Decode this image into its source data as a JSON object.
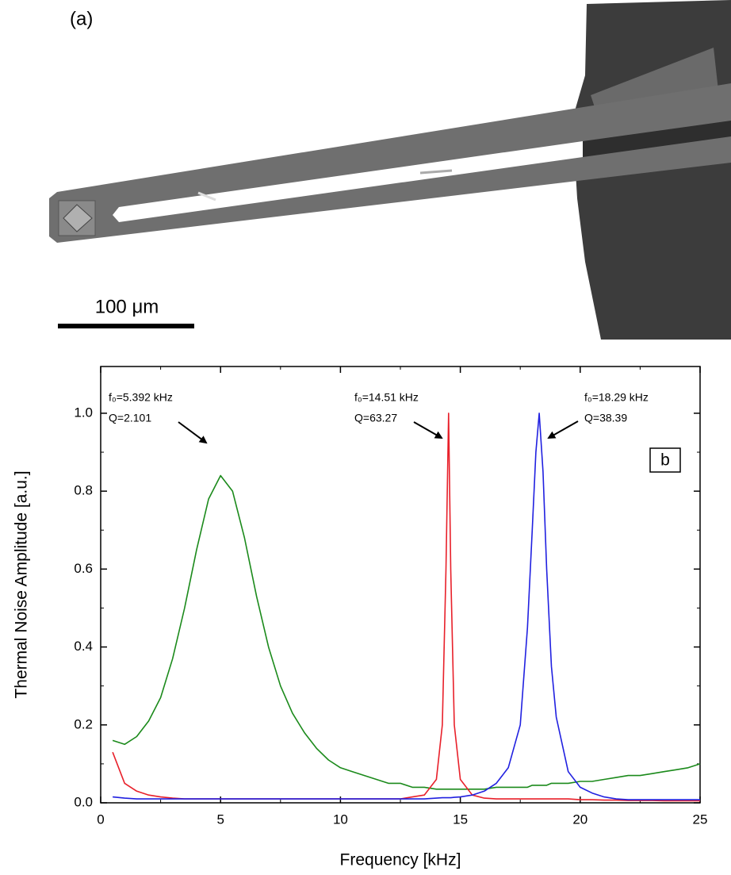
{
  "panel_a": {
    "label": "(a)",
    "scale_bar": "100 μm"
  },
  "chart_data": {
    "type": "line",
    "xlabel": "Frequency [kHz]",
    "ylabel": "Thermal Noise Amplitude [a.u.]",
    "panel_label": "b",
    "xlim": [
      0,
      25
    ],
    "ylim": [
      0,
      1.12
    ],
    "xticks": [
      0,
      5,
      10,
      15,
      20,
      25
    ],
    "yticks": [
      {
        "value": 0,
        "label": "0.0"
      },
      0.2,
      0.4,
      0.6,
      0.8,
      {
        "value": 1,
        "label": "1.0"
      }
    ],
    "annotations": [
      {
        "text": "f₀=5.392 kHz",
        "q": "Q=2.101"
      },
      {
        "text": "f₀=14.51 kHz",
        "q": "Q=63.27"
      },
      {
        "text": "f₀=18.29 kHz",
        "q": "Q=38.39"
      }
    ],
    "x": [
      0.5,
      1,
      1.5,
      2,
      2.5,
      3,
      3.5,
      4,
      4.5,
      5,
      5.5,
      6,
      6.5,
      7,
      7.5,
      8,
      8.5,
      9,
      9.5,
      10,
      10.5,
      11,
      11.5,
      12,
      12.5,
      13,
      13.5,
      14,
      14.25,
      14.4,
      14.51,
      14.6,
      14.75,
      15,
      15.5,
      16,
      16.5,
      17,
      17.5,
      17.8,
      18,
      18.15,
      18.29,
      18.45,
      18.6,
      18.8,
      19,
      19.5,
      20,
      20.5,
      21,
      21.5,
      22,
      22.5,
      23,
      23.5,
      24,
      24.5,
      25
    ],
    "series": [
      {
        "name": "f₀=5.392 kHz",
        "color": "#1b8a1b",
        "values": [
          0.16,
          0.15,
          0.17,
          0.21,
          0.27,
          0.37,
          0.5,
          0.65,
          0.78,
          0.84,
          0.8,
          0.68,
          0.53,
          0.4,
          0.3,
          0.23,
          0.18,
          0.14,
          0.11,
          0.09,
          0.08,
          0.07,
          0.06,
          0.05,
          0.05,
          0.04,
          0.04,
          0.035,
          0.035,
          0.035,
          0.035,
          0.035,
          0.035,
          0.035,
          0.035,
          0.035,
          0.04,
          0.04,
          0.04,
          0.04,
          0.045,
          0.045,
          0.045,
          0.045,
          0.045,
          0.05,
          0.05,
          0.05,
          0.055,
          0.055,
          0.06,
          0.065,
          0.07,
          0.07,
          0.075,
          0.08,
          0.085,
          0.09,
          0.1
        ]
      },
      {
        "name": "f₀=14.51 kHz",
        "color": "#e8202a",
        "values": [
          0.13,
          0.05,
          0.03,
          0.02,
          0.015,
          0.012,
          0.01,
          0.01,
          0.01,
          0.01,
          0.01,
          0.01,
          0.01,
          0.01,
          0.01,
          0.01,
          0.01,
          0.01,
          0.01,
          0.01,
          0.01,
          0.01,
          0.01,
          0.01,
          0.01,
          0.015,
          0.02,
          0.06,
          0.2,
          0.6,
          1.0,
          0.6,
          0.2,
          0.06,
          0.02,
          0.012,
          0.01,
          0.01,
          0.01,
          0.01,
          0.01,
          0.01,
          0.01,
          0.01,
          0.01,
          0.01,
          0.01,
          0.01,
          0.008,
          0.008,
          0.007,
          0.007,
          0.006,
          0.006,
          0.006,
          0.005,
          0.005,
          0.005,
          0.005
        ]
      },
      {
        "name": "f₀=18.29 kHz",
        "color": "#2020e0",
        "values": [
          0.015,
          0.012,
          0.01,
          0.01,
          0.01,
          0.01,
          0.01,
          0.01,
          0.01,
          0.01,
          0.01,
          0.01,
          0.01,
          0.01,
          0.01,
          0.01,
          0.01,
          0.01,
          0.01,
          0.01,
          0.01,
          0.01,
          0.01,
          0.01,
          0.01,
          0.01,
          0.01,
          0.012,
          0.013,
          0.013,
          0.013,
          0.013,
          0.014,
          0.015,
          0.02,
          0.03,
          0.05,
          0.09,
          0.2,
          0.45,
          0.7,
          0.9,
          1.0,
          0.85,
          0.6,
          0.35,
          0.22,
          0.08,
          0.04,
          0.025,
          0.015,
          0.01,
          0.008,
          0.008,
          0.008,
          0.008,
          0.008,
          0.008,
          0.008
        ]
      }
    ]
  }
}
